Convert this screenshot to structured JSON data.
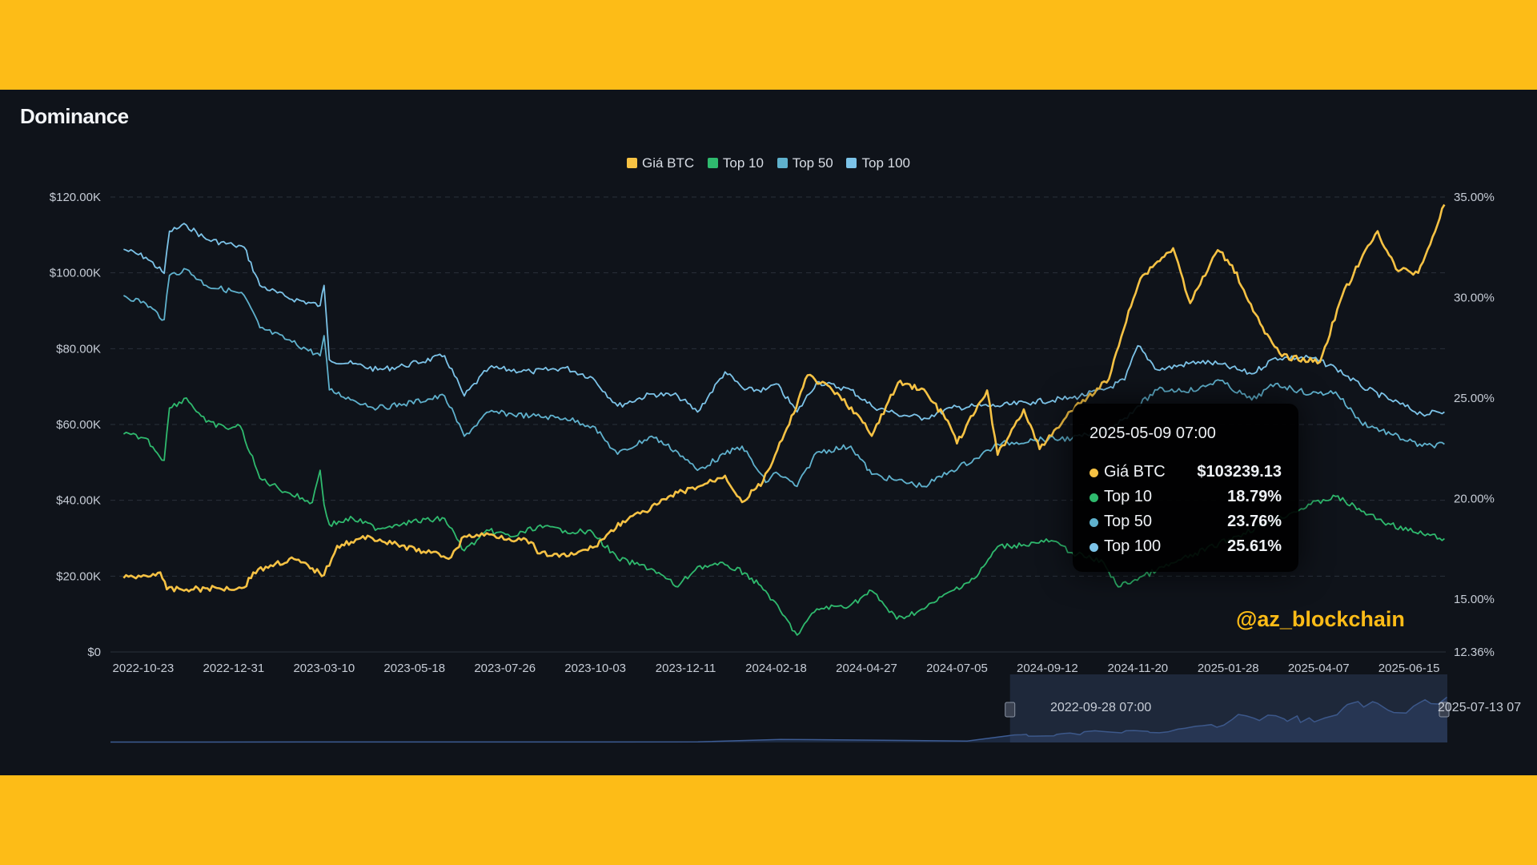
{
  "title": "Dominance",
  "colors": {
    "btc": "#f6c244",
    "top10": "#2fba6e",
    "top50": "#5fb1cd",
    "top100": "#7cc3e8",
    "grid": "#2a303b",
    "navigator_fill": "#1c2940",
    "navigator_line": "#3d5c94"
  },
  "chart_data": {
    "type": "line",
    "legend_position": "top-center",
    "grid": true,
    "x_tick_labels": [
      "2022-10-23",
      "2022-12-31",
      "2023-03-10",
      "2023-05-18",
      "2023-07-26",
      "2023-10-03",
      "2023-12-11",
      "2024-02-18",
      "2024-04-27",
      "2024-07-05",
      "2024-09-12",
      "2024-11-20",
      "2025-01-28",
      "2025-04-07",
      "2025-06-15"
    ],
    "x_range": [
      "2022-09-28",
      "2025-07-13"
    ],
    "left_axis": {
      "tick_labels": [
        "$0",
        "$20.00K",
        "$40.00K",
        "$60.00K",
        "$80.00K",
        "$100.00K",
        "$120.00K"
      ],
      "range": [
        0,
        120000
      ]
    },
    "right_axis": {
      "tick_labels": [
        "12.36%",
        "15.00%",
        "20.00%",
        "25.00%",
        "30.00%",
        "35.00%"
      ],
      "range": [
        12.36,
        35
      ]
    },
    "series": [
      {
        "name": "Giá BTC",
        "axis": "left",
        "color_key": "btc",
        "points": [
          [
            "2022-10-08",
            19500
          ],
          [
            "2022-10-25",
            20100
          ],
          [
            "2022-11-05",
            21000
          ],
          [
            "2022-11-10",
            16500
          ],
          [
            "2022-11-25",
            16500
          ],
          [
            "2022-12-20",
            16800
          ],
          [
            "2023-01-08",
            17000
          ],
          [
            "2023-01-15",
            21000
          ],
          [
            "2023-02-01",
            23300
          ],
          [
            "2023-02-15",
            24500
          ],
          [
            "2023-03-10",
            20300
          ],
          [
            "2023-03-20",
            28000
          ],
          [
            "2023-04-14",
            30400
          ],
          [
            "2023-05-01",
            28500
          ],
          [
            "2023-05-25",
            26500
          ],
          [
            "2023-06-15",
            25000
          ],
          [
            "2023-06-25",
            30500
          ],
          [
            "2023-07-14",
            31000
          ],
          [
            "2023-08-15",
            29000
          ],
          [
            "2023-08-20",
            26000
          ],
          [
            "2023-09-11",
            25200
          ],
          [
            "2023-10-01",
            27500
          ],
          [
            "2023-10-24",
            34500
          ],
          [
            "2023-11-10",
            37000
          ],
          [
            "2023-12-05",
            42000
          ],
          [
            "2023-12-20",
            43500
          ],
          [
            "2024-01-10",
            46500
          ],
          [
            "2024-01-23",
            39500
          ],
          [
            "2024-02-08",
            45000
          ],
          [
            "2024-02-28",
            60000
          ],
          [
            "2024-03-13",
            73000
          ],
          [
            "2024-04-01",
            69000
          ],
          [
            "2024-04-19",
            63000
          ],
          [
            "2024-05-01",
            57000
          ],
          [
            "2024-05-21",
            71000
          ],
          [
            "2024-06-08",
            69500
          ],
          [
            "2024-06-28",
            61000
          ],
          [
            "2024-07-05",
            55000
          ],
          [
            "2024-07-28",
            69000
          ],
          [
            "2024-08-05",
            52000
          ],
          [
            "2024-08-25",
            64000
          ],
          [
            "2024-09-06",
            53500
          ],
          [
            "2024-09-30",
            63500
          ],
          [
            "2024-10-29",
            72000
          ],
          [
            "2024-11-13",
            90000
          ],
          [
            "2024-11-22",
            98500
          ],
          [
            "2024-12-05",
            103000
          ],
          [
            "2024-12-17",
            106500
          ],
          [
            "2024-12-30",
            92000
          ],
          [
            "2025-01-20",
            106000
          ],
          [
            "2025-01-31",
            102000
          ],
          [
            "2025-02-25",
            84000
          ],
          [
            "2025-03-10",
            78000
          ],
          [
            "2025-04-08",
            76500
          ],
          [
            "2025-04-25",
            94000
          ],
          [
            "2025-05-09",
            103239
          ],
          [
            "2025-05-22",
            111000
          ],
          [
            "2025-06-05",
            101000
          ],
          [
            "2025-06-22",
            100000
          ],
          [
            "2025-07-03",
            109500
          ],
          [
            "2025-07-12",
            118000
          ]
        ]
      },
      {
        "name": "Top 10",
        "axis": "right",
        "color_key": "top10",
        "points": [
          [
            "2022-10-08",
            23.2
          ],
          [
            "2022-10-25",
            23.0
          ],
          [
            "2022-11-08",
            21.9
          ],
          [
            "2022-11-12",
            24.5
          ],
          [
            "2022-11-25",
            25.0
          ],
          [
            "2022-12-10",
            23.8
          ],
          [
            "2022-12-25",
            23.5
          ],
          [
            "2023-01-05",
            23.6
          ],
          [
            "2023-01-20",
            21.0
          ],
          [
            "2023-02-10",
            20.3
          ],
          [
            "2023-03-01",
            19.8
          ],
          [
            "2023-03-07",
            21.4
          ],
          [
            "2023-03-10",
            19.7
          ],
          [
            "2023-03-14",
            18.7
          ],
          [
            "2023-04-01",
            19.0
          ],
          [
            "2023-04-20",
            18.5
          ],
          [
            "2023-05-10",
            18.8
          ],
          [
            "2023-06-10",
            19.0
          ],
          [
            "2023-06-25",
            17.4
          ],
          [
            "2023-07-14",
            18.4
          ],
          [
            "2023-08-01",
            18.1
          ],
          [
            "2023-08-20",
            18.6
          ],
          [
            "2023-09-10",
            18.4
          ],
          [
            "2023-10-01",
            18.3
          ],
          [
            "2023-10-20",
            17.0
          ],
          [
            "2023-11-15",
            16.5
          ],
          [
            "2023-12-05",
            15.6
          ],
          [
            "2023-12-20",
            16.6
          ],
          [
            "2024-01-10",
            16.7
          ],
          [
            "2024-01-25",
            16.3
          ],
          [
            "2024-02-10",
            15.4
          ],
          [
            "2024-03-05",
            13.2
          ],
          [
            "2024-03-20",
            14.5
          ],
          [
            "2024-04-15",
            14.7
          ],
          [
            "2024-05-01",
            15.4
          ],
          [
            "2024-05-20",
            14.0
          ],
          [
            "2024-06-10",
            14.5
          ],
          [
            "2024-07-01",
            15.4
          ],
          [
            "2024-07-20",
            16.1
          ],
          [
            "2024-08-05",
            17.6
          ],
          [
            "2024-08-25",
            17.7
          ],
          [
            "2024-09-15",
            17.9
          ],
          [
            "2024-10-01",
            17.3
          ],
          [
            "2024-10-25",
            16.8
          ],
          [
            "2024-11-05",
            15.6
          ],
          [
            "2025-04-01",
            19.7
          ],
          [
            "2025-04-20",
            20.1
          ],
          [
            "2025-05-15",
            19.2
          ],
          [
            "2025-06-01",
            18.7
          ],
          [
            "2025-06-20",
            18.3
          ],
          [
            "2025-07-12",
            18.0
          ]
        ]
      },
      {
        "name": "Top 50",
        "axis": "right",
        "color_key": "top50",
        "points": [
          [
            "2022-10-08",
            30.1
          ],
          [
            "2022-10-25",
            29.7
          ],
          [
            "2022-11-08",
            28.9
          ],
          [
            "2022-11-12",
            31.1
          ],
          [
            "2022-11-25",
            31.4
          ],
          [
            "2022-12-10",
            30.6
          ],
          [
            "2022-12-31",
            30.3
          ],
          [
            "2023-01-08",
            30.1
          ],
          [
            "2023-01-20",
            28.5
          ],
          [
            "2023-02-10",
            27.9
          ],
          [
            "2023-03-07",
            27.1
          ],
          [
            "2023-03-10",
            28.1
          ],
          [
            "2023-03-14",
            25.4
          ],
          [
            "2023-04-01",
            24.9
          ],
          [
            "2023-04-20",
            24.5
          ],
          [
            "2023-05-10",
            24.7
          ],
          [
            "2023-06-10",
            25.1
          ],
          [
            "2023-06-25",
            23.1
          ],
          [
            "2023-07-14",
            24.3
          ],
          [
            "2023-08-15",
            24.1
          ],
          [
            "2023-09-10",
            24.0
          ],
          [
            "2023-10-01",
            23.6
          ],
          [
            "2023-10-20",
            22.2
          ],
          [
            "2023-11-15",
            23.1
          ],
          [
            "2023-12-05",
            22.3
          ],
          [
            "2023-12-20",
            21.4
          ],
          [
            "2024-01-10",
            22.2
          ],
          [
            "2024-01-23",
            22.6
          ],
          [
            "2024-02-10",
            20.8
          ],
          [
            "2024-02-18",
            21.3
          ],
          [
            "2024-03-05",
            20.6
          ],
          [
            "2024-03-20",
            22.3
          ],
          [
            "2024-04-15",
            22.6
          ],
          [
            "2024-05-01",
            21.2
          ],
          [
            "2024-05-20",
            20.9
          ],
          [
            "2024-06-10",
            20.6
          ],
          [
            "2024-07-01",
            21.4
          ],
          [
            "2024-07-20",
            22.0
          ],
          [
            "2024-08-05",
            22.7
          ],
          [
            "2024-09-01",
            22.9
          ],
          [
            "2024-10-01",
            23.0
          ],
          [
            "2024-10-25",
            23.3
          ],
          [
            "2024-11-10",
            24.0
          ],
          [
            "2024-11-20",
            24.6
          ],
          [
            "2024-12-05",
            25.4
          ],
          [
            "2025-01-05",
            25.4
          ],
          [
            "2025-01-20",
            25.9
          ],
          [
            "2025-02-15",
            24.9
          ],
          [
            "2025-03-05",
            25.7
          ],
          [
            "2025-04-01",
            25.2
          ],
          [
            "2025-04-20",
            25.3
          ],
          [
            "2025-05-09",
            23.8
          ],
          [
            "2025-06-01",
            23.2
          ],
          [
            "2025-06-25",
            22.6
          ],
          [
            "2025-07-12",
            22.7
          ]
        ]
      },
      {
        "name": "Top 100",
        "axis": "right",
        "color_key": "top100",
        "points": [
          [
            "2022-10-08",
            32.4
          ],
          [
            "2022-10-25",
            32.0
          ],
          [
            "2022-11-08",
            31.2
          ],
          [
            "2022-11-12",
            33.3
          ],
          [
            "2022-11-25",
            33.6
          ],
          [
            "2022-12-10",
            32.9
          ],
          [
            "2022-12-31",
            32.6
          ],
          [
            "2023-01-08",
            32.5
          ],
          [
            "2023-01-20",
            30.6
          ],
          [
            "2023-02-10",
            30.0
          ],
          [
            "2023-03-07",
            29.6
          ],
          [
            "2023-03-10",
            30.6
          ],
          [
            "2023-03-14",
            26.9
          ],
          [
            "2023-04-01",
            26.7
          ],
          [
            "2023-04-20",
            26.4
          ],
          [
            "2023-05-10",
            26.6
          ],
          [
            "2023-06-10",
            27.1
          ],
          [
            "2023-06-25",
            25.1
          ],
          [
            "2023-07-14",
            26.5
          ],
          [
            "2023-08-15",
            26.3
          ],
          [
            "2023-09-10",
            26.5
          ],
          [
            "2023-10-01",
            26.0
          ],
          [
            "2023-10-20",
            24.6
          ],
          [
            "2023-11-15",
            25.2
          ],
          [
            "2023-12-05",
            25.1
          ],
          [
            "2023-12-20",
            24.3
          ],
          [
            "2024-01-10",
            26.3
          ],
          [
            "2024-01-25",
            25.4
          ],
          [
            "2024-02-10",
            25.4
          ],
          [
            "2024-02-18",
            25.7
          ],
          [
            "2024-03-05",
            24.3
          ],
          [
            "2024-03-20",
            25.8
          ],
          [
            "2024-04-15",
            25.4
          ],
          [
            "2024-05-01",
            24.6
          ],
          [
            "2024-05-20",
            24.2
          ],
          [
            "2024-06-10",
            24.0
          ],
          [
            "2024-07-01",
            24.5
          ],
          [
            "2024-07-20",
            24.6
          ],
          [
            "2024-08-05",
            24.6
          ],
          [
            "2024-09-01",
            24.8
          ],
          [
            "2024-10-01",
            25.0
          ],
          [
            "2024-10-25",
            25.4
          ],
          [
            "2024-11-10",
            25.9
          ],
          [
            "2024-11-20",
            27.6
          ],
          [
            "2024-12-05",
            26.4
          ],
          [
            "2025-01-05",
            26.8
          ],
          [
            "2025-01-20",
            26.7
          ],
          [
            "2025-02-15",
            26.2
          ],
          [
            "2025-03-05",
            27.0
          ],
          [
            "2025-04-01",
            27.0
          ],
          [
            "2025-04-20",
            26.5
          ],
          [
            "2025-05-09",
            25.6
          ],
          [
            "2025-06-01",
            24.9
          ],
          [
            "2025-06-25",
            24.2
          ],
          [
            "2025-07-12",
            24.3
          ]
        ]
      }
    ]
  },
  "tooltip": {
    "title": "2025-05-09 07:00",
    "rows": [
      {
        "label": "Giá BTC",
        "value": "$103239.13",
        "color_key": "btc"
      },
      {
        "label": "Top 10",
        "value": "18.79%",
        "color_key": "top10"
      },
      {
        "label": "Top 50",
        "value": "23.76%",
        "color_key": "top50"
      },
      {
        "label": "Top 100",
        "value": "25.61%",
        "color_key": "top100"
      }
    ]
  },
  "navigator": {
    "start_label": "2022-09-28 07:00",
    "end_label": "2025-07-13 07"
  },
  "watermark": "@az_blockchain"
}
